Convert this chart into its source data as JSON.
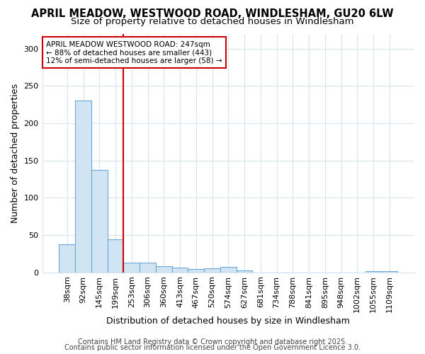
{
  "title1": "APRIL MEADOW, WESTWOOD ROAD, WINDLESHAM, GU20 6LW",
  "title2": "Size of property relative to detached houses in Windlesham",
  "xlabel": "Distribution of detached houses by size in Windlesham",
  "ylabel": "Number of detached properties",
  "categories": [
    "38sqm",
    "92sqm",
    "145sqm",
    "199sqm",
    "253sqm",
    "306sqm",
    "360sqm",
    "413sqm",
    "467sqm",
    "520sqm",
    "574sqm",
    "627sqm",
    "681sqm",
    "734sqm",
    "788sqm",
    "841sqm",
    "895sqm",
    "948sqm",
    "1002sqm",
    "1055sqm",
    "1109sqm"
  ],
  "values": [
    38,
    230,
    137,
    44,
    13,
    13,
    8,
    6,
    4,
    5,
    7,
    3,
    0,
    0,
    0,
    0,
    0,
    0,
    0,
    2,
    2
  ],
  "bar_color": "#d0e4f4",
  "bar_edge_color": "#6aaad4",
  "vline_x": 4,
  "vline_color": "#cc0000",
  "annotation_text": "APRIL MEADOW WESTWOOD ROAD: 247sqm\n← 88% of detached houses are smaller (443)\n12% of semi-detached houses are larger (58) →",
  "annotation_box_color": "white",
  "annotation_box_edge_color": "#cc0000",
  "ylim": [
    0,
    320
  ],
  "yticks": [
    0,
    50,
    100,
    150,
    200,
    250,
    300
  ],
  "footer_text1": "Contains HM Land Registry data © Crown copyright and database right 2025.",
  "footer_text2": "Contains public sector information licensed under the Open Government Licence 3.0.",
  "bg_color": "#ffffff",
  "plot_bg_color": "#ffffff",
  "grid_color": "#d8e4f0",
  "title_fontsize": 10.5,
  "subtitle_fontsize": 9.5,
  "axis_label_fontsize": 9,
  "tick_fontsize": 8,
  "annotation_fontsize": 7.5,
  "footer_fontsize": 7
}
